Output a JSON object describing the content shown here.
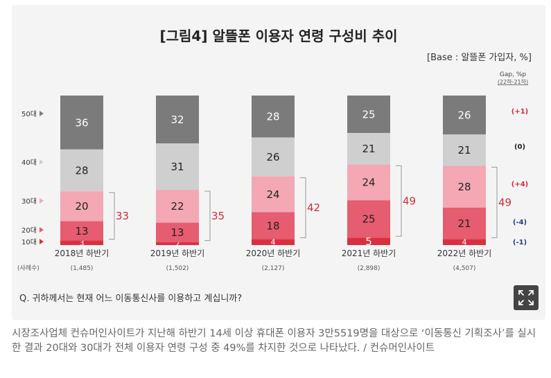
{
  "chart_data": {
    "type": "bar",
    "stacked": true,
    "orientation": "vertical",
    "title": "[그림4] 알뜰폰 이용자 연령 구성비 추이",
    "base_note": "[Base : 알뜰폰 가입자, %]",
    "gap_header": "Gap, %p",
    "gap_subheader": "(22하-21하)",
    "sample_label": "(사례수)",
    "question": "Q. 귀하께서는 현재 어느 이동통신사를 이용하고 계십니까?",
    "categories": [
      "2018년 하반기",
      "2019년 하반기",
      "2020년 하반기",
      "2021년 하반기",
      "2022년 하반기"
    ],
    "sample_sizes": [
      "(1,485)",
      "(1,502)",
      "(2,127)",
      "(2,898)",
      "(4,507)"
    ],
    "series": [
      {
        "name": "10대",
        "color": "#d93040",
        "values": [
          3,
          2,
          4,
          5,
          4
        ]
      },
      {
        "name": "20대",
        "color": "#e65c70",
        "values": [
          13,
          13,
          18,
          25,
          21
        ]
      },
      {
        "name": "30대",
        "color": "#f3a8b4",
        "values": [
          20,
          22,
          24,
          24,
          28
        ]
      },
      {
        "name": "40대",
        "color": "#cfcfcf",
        "values": [
          28,
          31,
          26,
          21,
          21
        ]
      },
      {
        "name": "50대",
        "color": "#7b7b7b",
        "values": [
          36,
          32,
          28,
          25,
          26
        ]
      }
    ],
    "combined_20_30": [
      "33",
      "35",
      "42",
      "49",
      "49"
    ],
    "legend_labels": [
      "50대",
      "40대",
      "30대",
      "20대",
      "10대"
    ],
    "gaps": [
      {
        "series": "50대",
        "text": "(+1)",
        "color": "#d42a3a"
      },
      {
        "series": "40대",
        "text": "(0)",
        "color": "#222222"
      },
      {
        "series": "30대",
        "text": "(+4)",
        "color": "#d42a3a"
      },
      {
        "series": "20대",
        "text": "(-4)",
        "color": "#1f3f8a"
      },
      {
        "series": "10대",
        "text": "(-1)",
        "color": "#1f3f8a"
      }
    ],
    "ylim": [
      0,
      100
    ]
  },
  "caption": "시장조사업체 컨슈머인사이트가 지난해 하반기 14세 이상 휴대폰 이용자 3만5519명을 대상으로 ‘이동통신 기획조사’를 실시한 결과 20대와 30대가 전체 이용자 연령 구성 중 49%를 차지한 것으로 나타났다. / 컨슈머인사이트",
  "expand_icon": "expand-icon",
  "colors": {
    "accent": "#d42a3a",
    "negative": "#1f3f8a",
    "card_bg": "#f4f4f4"
  }
}
